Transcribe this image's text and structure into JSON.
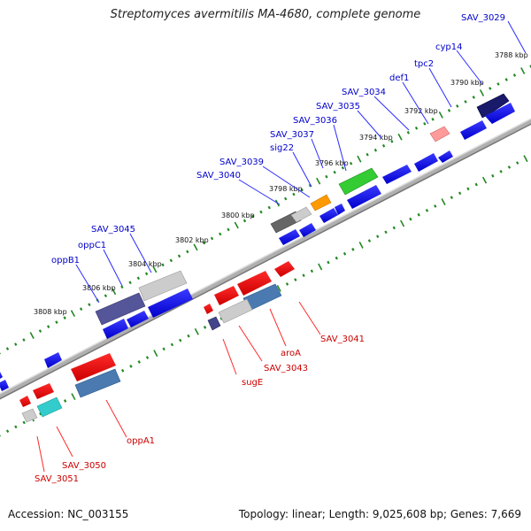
{
  "title": "Streptomyces avermitilis MA-4680, complete genome",
  "footer": {
    "accession": "Accession: NC_003155",
    "summary": "Topology: linear; Length: 9,025,608 bp; Genes: 7,669"
  },
  "colors": {
    "forward_label": "#0000cc",
    "reverse_label": "#cc0000",
    "tick": "#228822",
    "backbone": "#888888"
  },
  "ruler_ticks": [
    "3788 kbp",
    "3790 kbp",
    "3792 kbp",
    "3794 kbp",
    "3796 kbp",
    "3798 kbp",
    "3800 kbp",
    "3802 kbp",
    "3804 kbp",
    "3806 kbp",
    "3808 kbp"
  ],
  "forward_genes": [
    "SAV_3029",
    "cyp14",
    "tpc2",
    "def1",
    "SAV_3034",
    "SAV_3035",
    "SAV_3036",
    "SAV_3037",
    "sig22",
    "SAV_3039",
    "SAV_3040",
    "SAV_3045",
    "oppC1",
    "oppB1"
  ],
  "reverse_genes": [
    "SAV_3041",
    "aroA",
    "SAV_3043",
    "sugE",
    "oppA1",
    "SAV_3050",
    "SAV_3051"
  ]
}
